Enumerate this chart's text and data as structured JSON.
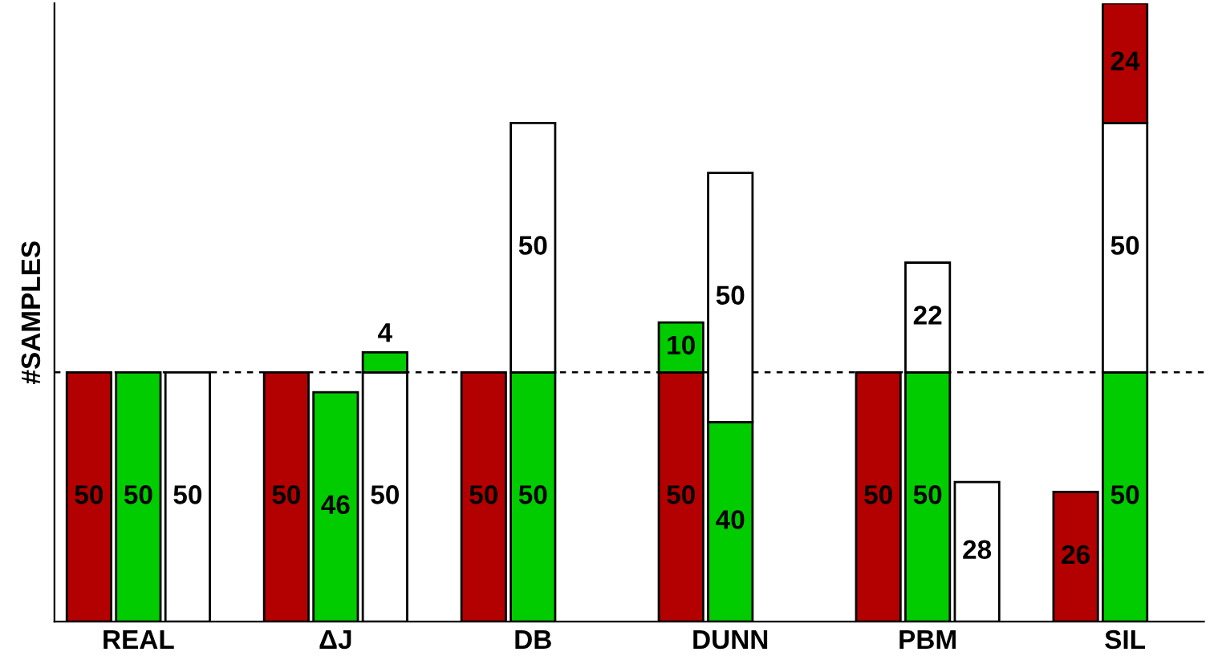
{
  "chart_data": {
    "type": "bar",
    "stacked": true,
    "ylabel": "#SAMPLES",
    "categories": [
      null,
      "REAL",
      null,
      null,
      null,
      "ΔJ",
      null,
      null,
      null,
      "DB",
      null,
      null,
      null,
      "DUNN",
      null,
      null,
      null,
      "PBM",
      null,
      null,
      null,
      "SIL",
      null
    ],
    "series": [
      {
        "values": [
          50,
          50,
          50,
          null,
          50,
          46,
          50,
          null,
          50,
          50,
          null,
          null,
          50,
          40,
          null,
          null,
          50,
          50,
          28,
          null,
          26,
          50,
          null
        ],
        "colors": [
          "#b30000",
          "#00cc00",
          "#ffffff",
          null,
          "#b30000",
          "#00cc00",
          "#ffffff",
          null,
          "#b30000",
          "#00cc00",
          null,
          null,
          "#b30000",
          "#00cc00",
          null,
          null,
          "#b30000",
          "#00cc00",
          "#ffffff",
          null,
          "#b30000",
          "#00cc00",
          null
        ]
      },
      {
        "values": [
          null,
          null,
          null,
          null,
          null,
          null,
          4,
          null,
          null,
          50,
          null,
          null,
          10,
          50,
          null,
          null,
          null,
          22,
          null,
          null,
          null,
          50,
          null
        ],
        "colors": [
          null,
          null,
          null,
          null,
          null,
          null,
          "#00cc00",
          null,
          null,
          "#ffffff",
          null,
          null,
          "#00cc00",
          "#ffffff",
          null,
          null,
          null,
          "#ffffff",
          null,
          null,
          null,
          "#ffffff",
          null
        ]
      },
      {
        "values": [
          null,
          null,
          null,
          null,
          null,
          null,
          null,
          null,
          null,
          null,
          null,
          null,
          null,
          null,
          null,
          null,
          null,
          null,
          null,
          null,
          null,
          24,
          null
        ],
        "colors": [
          null,
          null,
          null,
          null,
          null,
          null,
          null,
          null,
          null,
          null,
          null,
          null,
          null,
          null,
          null,
          null,
          null,
          null,
          null,
          null,
          null,
          "#b30000",
          null
        ]
      }
    ],
    "data_labels": true,
    "ref_lines": [
      {
        "axis": "y",
        "value": 50,
        "color": "#000000",
        "line_style": "dashed"
      }
    ],
    "tick_labels": "x",
    "grid": false,
    "legend": false
  }
}
